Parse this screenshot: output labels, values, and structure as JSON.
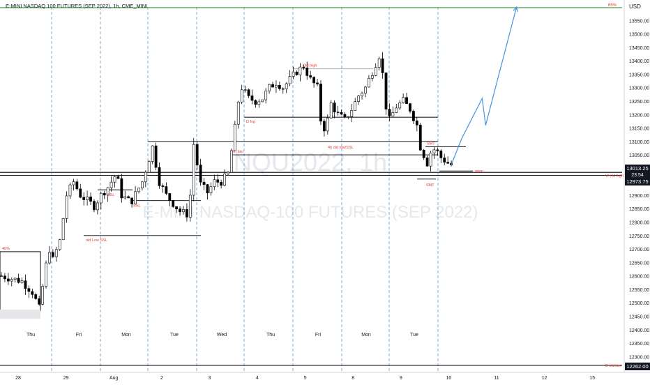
{
  "header": {
    "title": "E-MINI NASDAQ 100 FUTURES (SEP 2022), 1h, CME_MINI"
  },
  "watermark": {
    "symbol": "NQU2022, 1h",
    "name": "E-MINI NASDAQ-100 FUTURES (SEP 2022)"
  },
  "colors": {
    "bull_body": "#ffffff",
    "bear_body": "#000000",
    "candle_outline": "#000000",
    "annotation_red": "#e53935",
    "projection_blue": "#4a90e2",
    "green_line": "#43a047",
    "session_dash": "#5b9bd5",
    "dark_label": "#131722"
  },
  "chart_data": {
    "type": "candlestick",
    "title": "E-MINI NASDAQ 100 FUTURES (SEP 2022), 1h, CME_MINI",
    "price_axis": {
      "currency": "USD",
      "ylim": [
        12262,
        13600
      ],
      "ticks": [
        13550,
        13500,
        13450,
        13400,
        13350,
        13300,
        13250,
        13200,
        13150,
        13100,
        13050,
        12900,
        12850,
        12800,
        12750,
        12700,
        12650,
        12600,
        12550,
        12500,
        12450,
        12400,
        12350,
        12300
      ],
      "current_price_label": "13013.25",
      "countdown_label": "23:54",
      "level_label": "12973.75",
      "bottom_level_label": "12262.00",
      "top_label": "85%"
    },
    "date_axis": {
      "dates": [
        {
          "label": "28",
          "pos": 0
        },
        {
          "label": "29",
          "pos": 1
        },
        {
          "label": "Aug",
          "pos": 2
        },
        {
          "label": "2",
          "pos": 3
        },
        {
          "label": "3",
          "pos": 4
        },
        {
          "label": "4",
          "pos": 5
        },
        {
          "label": "5",
          "pos": 6
        },
        {
          "label": "8",
          "pos": 7
        },
        {
          "label": "9",
          "pos": 8
        },
        {
          "label": "10",
          "pos": 9
        },
        {
          "label": "11",
          "pos": 10
        },
        {
          "label": "12",
          "pos": 11
        },
        {
          "label": "15",
          "pos": 12
        }
      ],
      "day_labels": [
        "Thu",
        "Fri",
        "Mon",
        "Tue",
        "Wed",
        "Thu",
        "Fri",
        "Mon",
        "Tue"
      ]
    },
    "ohlc_path": [
      [
        0,
        12600
      ],
      [
        6,
        12580
      ],
      [
        9,
        12540
      ],
      [
        11,
        12480
      ],
      [
        13,
        12640
      ],
      [
        14,
        12700
      ],
      [
        15,
        12660
      ],
      [
        17,
        12730
      ],
      [
        19,
        12900
      ],
      [
        21,
        12950
      ],
      [
        23,
        12900
      ],
      [
        25,
        12880
      ],
      [
        27,
        12860
      ],
      [
        29,
        12900
      ],
      [
        31,
        12930
      ],
      [
        33,
        12970
      ],
      [
        34,
        12950
      ],
      [
        35,
        12900
      ],
      [
        37,
        12880
      ],
      [
        38,
        12880
      ],
      [
        41,
        12950
      ],
      [
        44,
        13080
      ],
      [
        46,
        12950
      ],
      [
        48,
        12900
      ],
      [
        50,
        12870
      ],
      [
        52,
        12840
      ],
      [
        54,
        12830
      ],
      [
        55,
        12900
      ],
      [
        56,
        13090
      ],
      [
        58,
        12940
      ],
      [
        60,
        12910
      ],
      [
        62,
        12950
      ],
      [
        64,
        12950
      ],
      [
        66,
        12980
      ],
      [
        68,
        13150
      ],
      [
        69,
        13250
      ],
      [
        70,
        13300
      ],
      [
        72,
        13260
      ],
      [
        74,
        13250
      ],
      [
        76,
        13260
      ],
      [
        78,
        13300
      ],
      [
        80,
        13320
      ],
      [
        82,
        13300
      ],
      [
        84,
        13330
      ],
      [
        86,
        13360
      ],
      [
        88,
        13380
      ],
      [
        90,
        13330
      ],
      [
        92,
        13300
      ],
      [
        93,
        13180
      ],
      [
        94,
        13150
      ],
      [
        95,
        13180
      ],
      [
        96,
        13240
      ],
      [
        98,
        13200
      ],
      [
        100,
        13180
      ],
      [
        102,
        13220
      ],
      [
        104,
        13270
      ],
      [
        106,
        13300
      ],
      [
        108,
        13360
      ],
      [
        110,
        13420
      ],
      [
        111,
        13350
      ],
      [
        112,
        13230
      ],
      [
        113,
        13180
      ],
      [
        115,
        13230
      ],
      [
        117,
        13250
      ],
      [
        119,
        13220
      ],
      [
        121,
        13160
      ],
      [
        122,
        13080
      ],
      [
        123,
        13050
      ],
      [
        124,
        13020
      ],
      [
        125,
        13060
      ],
      [
        126,
        13070
      ],
      [
        127,
        13060
      ],
      [
        128,
        13040
      ],
      [
        129,
        13030
      ],
      [
        130,
        13020
      ],
      [
        131,
        13013
      ]
    ],
    "annotations": [
      {
        "text": "85%",
        "kind": "green_line",
        "price": 13600
      },
      {
        "text": "Old high",
        "kind": "level",
        "price": 13370
      },
      {
        "text": "D fvg",
        "kind": "level",
        "price": 13190
      },
      {
        "text": "4h old low/SSL",
        "kind": "level",
        "price": 13100
      },
      {
        "text": "4h bisi",
        "kind": "level",
        "price": 13050
      },
      {
        "text": "SMT",
        "kind": "level",
        "price": 13080
      },
      {
        "text": "open",
        "kind": "level",
        "price": 12990
      },
      {
        "text": "W old high",
        "kind": "level",
        "price": 12973.75
      },
      {
        "text": "SSL",
        "kind": "level",
        "price": 12920
      },
      {
        "text": "SSL",
        "kind": "level",
        "price": 12880
      },
      {
        "text": "old Low SSL",
        "kind": "level",
        "price": 12750
      },
      {
        "text": "46%",
        "kind": "box",
        "price": 12690
      },
      {
        "text": "SMT",
        "kind": "level",
        "price": 12960
      },
      {
        "text": "D old low",
        "kind": "level",
        "price": 12262
      }
    ],
    "projection": [
      [
        131,
        13013
      ],
      [
        134,
        13110
      ],
      [
        140,
        13260
      ],
      [
        141,
        13160
      ],
      [
        150,
        13600
      ]
    ]
  }
}
